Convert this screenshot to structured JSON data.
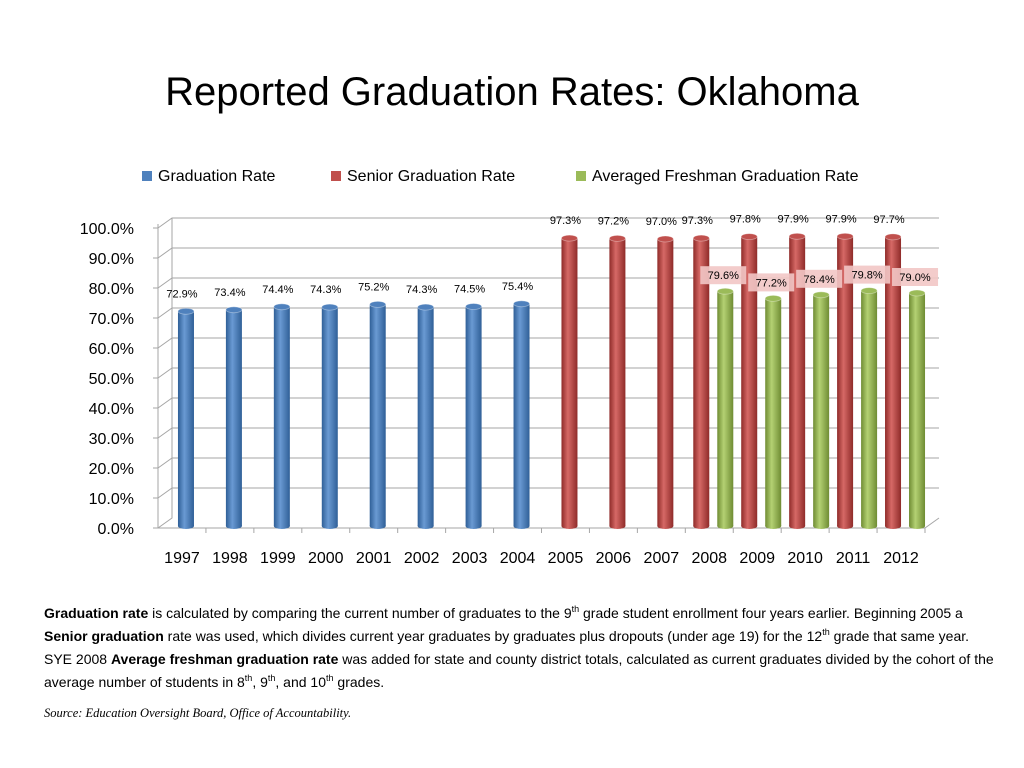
{
  "title": "Reported Graduation Rates: Oklahoma",
  "colors": {
    "graduation_rate": "#4f81bd",
    "senior_graduation_rate": "#c0504d",
    "averaged_freshman_graduation_rate": "#9bbb59"
  },
  "chart_data": {
    "type": "bar",
    "title": "Reported Graduation Rates: Oklahoma",
    "categories": [
      "1997",
      "1998",
      "1999",
      "2000",
      "2001",
      "2002",
      "2003",
      "2004",
      "2005",
      "2006",
      "2007",
      "2008",
      "2009",
      "2010",
      "2011",
      "2012"
    ],
    "series": [
      {
        "name": "Graduation Rate",
        "color": "#4f81bd",
        "values": [
          72.9,
          73.4,
          74.4,
          74.3,
          75.2,
          74.3,
          74.5,
          75.4,
          null,
          null,
          null,
          null,
          null,
          null,
          null,
          null
        ],
        "labels": [
          "72.9%",
          "73.4%",
          "74.4%",
          "74.3%",
          "75.2%",
          "74.3%",
          "74.5%",
          "75.4%",
          "",
          "",
          "",
          "",
          "",
          "",
          "",
          ""
        ]
      },
      {
        "name": "Senior Graduation Rate",
        "color": "#c0504d",
        "values": [
          null,
          null,
          null,
          null,
          null,
          null,
          null,
          null,
          97.3,
          97.2,
          97.0,
          97.3,
          97.8,
          97.9,
          97.9,
          97.7
        ],
        "labels": [
          "",
          "",
          "",
          "",
          "",
          "",
          "",
          "",
          "97.3%",
          "97.2%",
          "97.0%",
          "97.3%",
          "97.8%",
          "97.9%",
          "97.9%",
          "97.7%"
        ]
      },
      {
        "name": "Averaged Freshman Graduation Rate",
        "color": "#9bbb59",
        "values": [
          null,
          null,
          null,
          null,
          null,
          null,
          null,
          null,
          null,
          null,
          null,
          79.6,
          77.2,
          78.4,
          79.8,
          79.0
        ],
        "labels": [
          "",
          "",
          "",
          "",
          "",
          "",
          "",
          "",
          "",
          "",
          "",
          "79.6%",
          "77.2%",
          "78.4%",
          "79.8%",
          "79.0%"
        ]
      }
    ],
    "y_ticks": [
      "0.0%",
      "10.0%",
      "20.0%",
      "30.0%",
      "40.0%",
      "50.0%",
      "60.0%",
      "70.0%",
      "80.0%",
      "90.0%",
      "100.0%"
    ],
    "ylim": [
      0,
      100
    ],
    "xlabel": "",
    "ylabel": "",
    "grid": true,
    "legend": "top"
  },
  "legend": [
    {
      "label": "Graduation Rate",
      "color": "#4f81bd"
    },
    {
      "label": "Senior Graduation Rate",
      "color": "#c0504d"
    },
    {
      "label": "Averaged Freshman Graduation Rate",
      "color": "#9bbb59"
    }
  ],
  "description": {
    "p1_term": "Graduation rate",
    "p1_text": " is calculated by comparing the current number of graduates to the 9",
    "p1_sup": "th",
    "p1_text2": " grade student enrollment four years earlier. Beginning 2005 a ",
    "p2_term": "Senior graduation",
    "p2_text": " rate was used, which divides current year graduates by graduates plus dropouts (under age 19) for the 12",
    "p2_sup": "th",
    "p2_text2": " grade that same year.  SYE 2008 ",
    "p3_term": "Average freshman graduation rate",
    "p3_text": " was added for state and county district totals, calculated as current graduates divided by the cohort of the average number of students in 8",
    "p3_sup1": "th",
    "p3_sep1": ", 9",
    "p3_sup2": "th",
    "p3_sep2": ", and 10",
    "p3_sup3": "th",
    "p3_text2": " grades."
  },
  "source": "Source:  Education Oversight Board, Office of Accountability."
}
